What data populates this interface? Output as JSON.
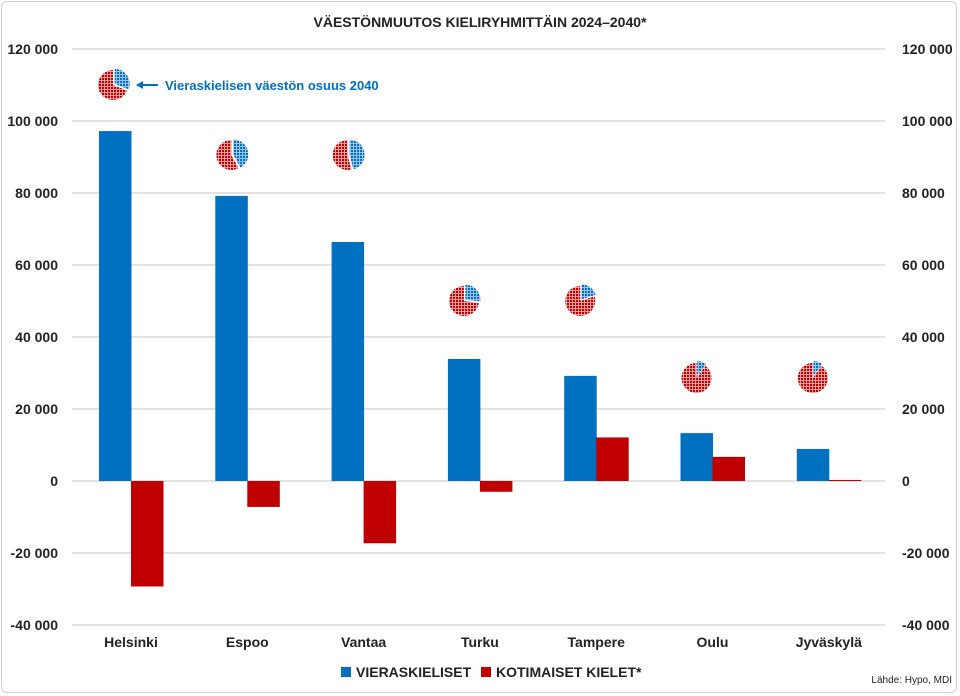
{
  "chart_data": {
    "type": "bar",
    "title": "VÄESTÖNMUUTOS KIELIRYHMITTÄIN 2024–2040*",
    "categories": [
      "Helsinki",
      "Espoo",
      "Vantaa",
      "Turku",
      "Tampere",
      "Oulu",
      "Jyväskylä"
    ],
    "series": [
      {
        "name": "VIERASKIELISET",
        "color": "#0070c0",
        "values": [
          97200,
          79200,
          66400,
          33900,
          29200,
          13300,
          8900
        ]
      },
      {
        "name": "KOTIMAISET KIELET*",
        "color": "#c00000",
        "values": [
          -29300,
          -7200,
          -17300,
          -3000,
          12100,
          6700,
          300
        ]
      }
    ],
    "pie_share_label": "Vieraskielisen väestön osuus 2040",
    "pie_shares": [
      0.31,
      0.42,
      0.46,
      0.27,
      0.2,
      0.1,
      0.1
    ],
    "ylim": [
      -40000,
      120000
    ],
    "yticks": [
      -40000,
      -20000,
      0,
      20000,
      40000,
      60000,
      80000,
      100000,
      120000
    ],
    "ytick_labels": [
      "-40 000",
      "-20 000",
      "0",
      "20 000",
      "40 000",
      "60 000",
      "80 000",
      "100 000",
      "120 000"
    ],
    "grid": true,
    "legend_placement": "bottom",
    "source": "Lähde: Hypo, MDI"
  }
}
